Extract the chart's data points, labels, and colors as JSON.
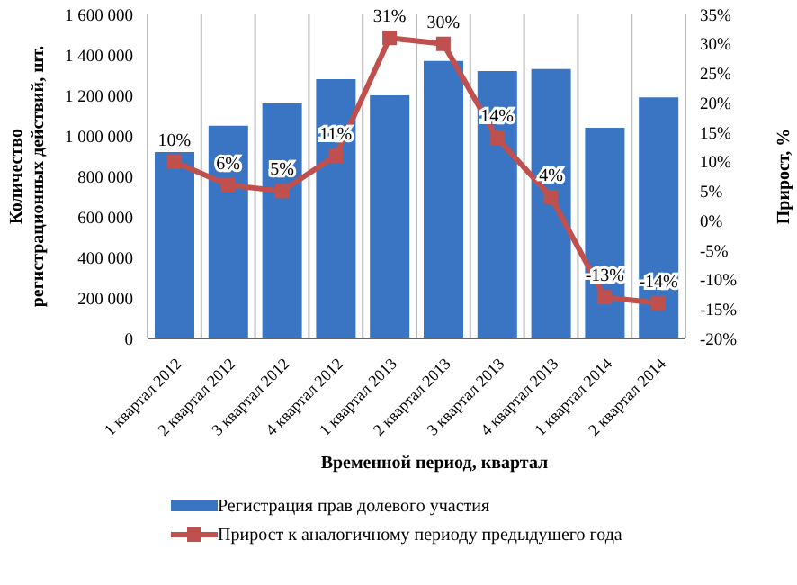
{
  "chart_data": {
    "type": "bar",
    "xlabel": "Временной период, квартал",
    "ylabel": "Количество регистрационных действий, шт.",
    "y2label": "Прирост, %",
    "categories": [
      "1 квартал 2012",
      "2 квартал 2012",
      "3 квартал 2012",
      "4 квартал 2012",
      "1 квартал 2013",
      "2 квартал 2013",
      "3 квартал 2013",
      "4 квартал 2013",
      "1 квартал 2014",
      "2 квартал 2014"
    ],
    "series": [
      {
        "name": "Регистрация прав долевого участия",
        "color": "#3a75c4",
        "values": [
          920000,
          1050000,
          1160000,
          1280000,
          1200000,
          1370000,
          1320000,
          1330000,
          1040000,
          1190000
        ]
      },
      {
        "name": "Прирост к аналогичному периоду предыдушего года",
        "type": "line",
        "axis": "y2",
        "color": "#c0504d",
        "marker": "square",
        "values": [
          10,
          6,
          5,
          11,
          31,
          30,
          14,
          4,
          -13,
          -14
        ],
        "value_labels": [
          "10%",
          "6%",
          "5%",
          "11%",
          "31%",
          "30%",
          "14%",
          "4%",
          "-13%",
          "-14%"
        ]
      }
    ],
    "ylim": [
      0,
      1600000
    ],
    "yticks": [
      {
        "value": 0,
        "label": "0"
      },
      {
        "value": 200000,
        "label": "200 000"
      },
      {
        "value": 400000,
        "label": "400 000"
      },
      {
        "value": 600000,
        "label": "600 000"
      },
      {
        "value": 800000,
        "label": "800 000"
      },
      {
        "value": 1000000,
        "label": "1 000 000"
      },
      {
        "value": 1200000,
        "label": "1 200 000"
      },
      {
        "value": 1400000,
        "label": "1 400 000"
      },
      {
        "value": 1600000,
        "label": "1 600 000"
      }
    ],
    "y2lim": [
      -20,
      35
    ],
    "y2ticks": [
      {
        "value": -20,
        "label": "-20%"
      },
      {
        "value": -15,
        "label": "-15%"
      },
      {
        "value": -10,
        "label": "-10%"
      },
      {
        "value": -5,
        "label": "-5%"
      },
      {
        "value": 0,
        "label": "0%"
      },
      {
        "value": 5,
        "label": "5%"
      },
      {
        "value": 10,
        "label": "10%"
      },
      {
        "value": 15,
        "label": "15%"
      },
      {
        "value": 20,
        "label": "20%"
      },
      {
        "value": 25,
        "label": "25%"
      },
      {
        "value": 30,
        "label": "30%"
      },
      {
        "value": 35,
        "label": "35%"
      }
    ],
    "grid": "x",
    "legend": "bottom"
  }
}
